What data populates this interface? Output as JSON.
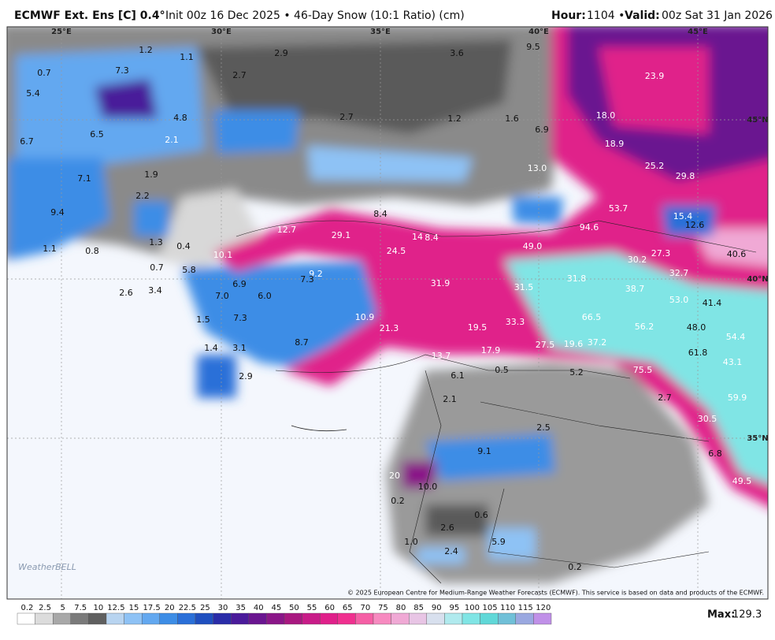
{
  "header": {
    "model": "ECMWF Ext. Ens [C] 0.4°",
    "description": "Init 00z 16 Dec 2025 • 46-Day Snow (10:1 Ratio) (cm)",
    "hour_label": "Hour:",
    "hour": "1104 •",
    "valid_label": "Valid:",
    "valid": "00z Sat 31 Jan 2026"
  },
  "map": {
    "coord_labels": [
      "25°E",
      "30°E",
      "35°E",
      "40°E",
      "45°E",
      "45°N",
      "40°N",
      "35°N"
    ],
    "labels": [
      "1.2",
      "1.1",
      "2.9",
      "3.6",
      "9.5",
      "23.9",
      "0.7",
      "7.3",
      "2.7",
      "5.4",
      "4.8",
      "2.7",
      "1.2",
      "1.6",
      "6.9",
      "18.0",
      "6.7",
      "6.5",
      "2.1",
      "18.9",
      "7.1",
      "1.9",
      "13.0",
      "25.2",
      "29.8",
      "2.2",
      "9.4",
      "53.7",
      "8.4",
      "15.4",
      "12.6",
      "12.7",
      "29.1",
      "14",
      "8.4",
      "94.6",
      "1.3",
      "0.4",
      "1.1",
      "0.8",
      "24.5",
      "49.0",
      "40.6",
      "10.1",
      "27.3",
      "30.2",
      "0.7",
      "5.8",
      "9.2",
      "32.7",
      "7.3",
      "31.9",
      "31.8",
      "6.9",
      "31.5",
      "38.7",
      "2.6",
      "3.4",
      "7.0",
      "6.0",
      "53.0",
      "41.4",
      "10.9",
      "66.5",
      "1.5",
      "7.3",
      "19.5",
      "33.3",
      "56.2",
      "48.0",
      "21.3",
      "54.4",
      "8.7",
      "19.6",
      "37.2",
      "27.5",
      "1.4",
      "3.1",
      "17.9",
      "61.8",
      "13.7",
      "43.1",
      "0.5",
      "5.2",
      "75.5",
      "6.1",
      "2.9",
      "2.1",
      "2.7",
      "59.9",
      "30.5",
      "2.5",
      "9.1",
      "6.8",
      "20",
      "49.5",
      "10.0",
      "0.2",
      "0.6",
      "2.6",
      "1.0",
      "5.9",
      "2.4",
      "0.2"
    ],
    "copyright": "© 2025 European Centre for Medium-Range Weather Forecasts (ECMWF). This service is based on data and products of the ECMWF.",
    "watermark": "WeatherBELL"
  },
  "colorbar": {
    "labels": [
      "0.2",
      "2.5",
      "5",
      "7.5",
      "10",
      "12.5",
      "15",
      "17.5",
      "20",
      "22.5",
      "25",
      "30",
      "35",
      "40",
      "45",
      "50",
      "55",
      "60",
      "65",
      "70",
      "75",
      "80",
      "85",
      "90",
      "95",
      "100",
      "105",
      "110",
      "115",
      "120"
    ],
    "colors": [
      "#ffffff",
      "#dcdcdc",
      "#a8a8a8",
      "#7a7a7a",
      "#5f5f5f",
      "#b8d4f0",
      "#8ec2f5",
      "#63a8f0",
      "#3d8de6",
      "#2a6fd8",
      "#1f4fbf",
      "#2a2ca8",
      "#4a1a9a",
      "#6a1590",
      "#8a1688",
      "#a81880",
      "#c81c88",
      "#e0208a",
      "#f0308f",
      "#f55fa5",
      "#f78ac0",
      "#f0a9d5",
      "#e8c5e5",
      "#d8e0ee",
      "#b0eaee",
      "#80e5e5",
      "#60d8d8",
      "#70c0d8",
      "#9aa8e0",
      "#c090e8"
    ],
    "max_label": "Max:",
    "max": 129.3
  }
}
